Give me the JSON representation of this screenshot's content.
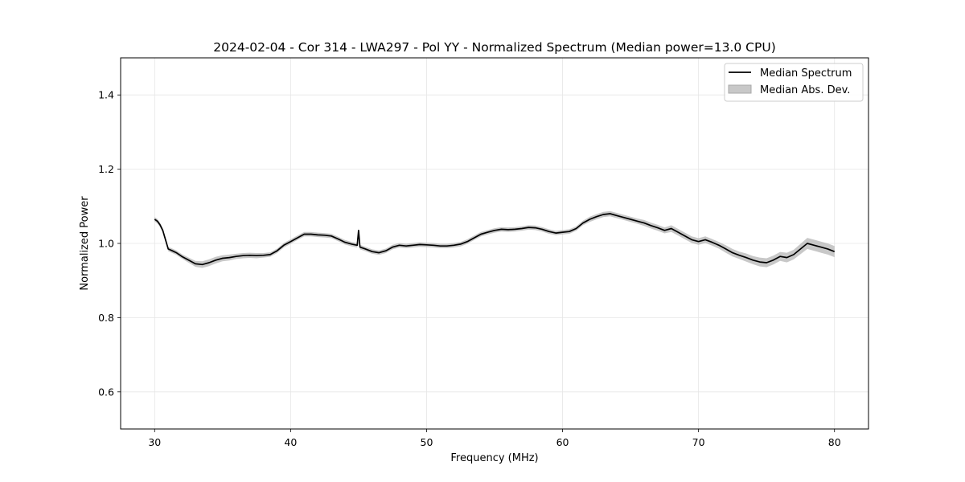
{
  "chart_data": {
    "type": "line",
    "title": "2024-02-04 - Cor 314 - LWA297 - Pol YY - Normalized Spectrum (Median power=13.0 CPU)",
    "xlabel": "Frequency (MHz)",
    "ylabel": "Normalized Power",
    "xlim": [
      27.5,
      82.5
    ],
    "ylim": [
      0.5,
      1.5
    ],
    "xticks": [
      30,
      40,
      50,
      60,
      70,
      80
    ],
    "xtick_labels": [
      "30",
      "40",
      "50",
      "60",
      "70",
      "80"
    ],
    "yticks": [
      0.6,
      0.8,
      1.0,
      1.2,
      1.4
    ],
    "ytick_labels": [
      "0.6",
      "0.8",
      "1.0",
      "1.2",
      "1.4"
    ],
    "grid": true,
    "legend_position": "top-right",
    "legend": [
      "Median Spectrum",
      "Median Abs. Dev."
    ],
    "colors": {
      "line": "#000000",
      "band": "#b0b0b0",
      "grid": "#e6e6e6"
    },
    "series": [
      {
        "name": "Median Spectrum",
        "x": [
          30.0,
          30.2,
          30.4,
          30.6,
          30.8,
          31.0,
          31.3,
          31.6,
          32.0,
          32.5,
          33.0,
          33.5,
          34.0,
          34.5,
          35.0,
          35.5,
          36.0,
          36.5,
          37.0,
          37.5,
          38.0,
          38.5,
          39.0,
          39.5,
          40.0,
          40.5,
          41.0,
          41.5,
          42.0,
          42.5,
          43.0,
          43.5,
          44.0,
          44.5,
          44.9,
          45.0,
          45.1,
          45.5,
          46.0,
          46.5,
          47.0,
          47.5,
          48.0,
          48.5,
          49.0,
          49.5,
          50.0,
          50.5,
          51.0,
          51.5,
          52.0,
          52.5,
          53.0,
          53.5,
          54.0,
          54.5,
          55.0,
          55.5,
          56.0,
          56.5,
          57.0,
          57.5,
          58.0,
          58.5,
          59.0,
          59.5,
          60.0,
          60.5,
          61.0,
          61.5,
          62.0,
          62.5,
          63.0,
          63.5,
          64.0,
          64.5,
          65.0,
          65.5,
          66.0,
          66.5,
          67.0,
          67.5,
          68.0,
          68.5,
          69.0,
          69.5,
          70.0,
          70.5,
          71.0,
          71.5,
          72.0,
          72.5,
          73.0,
          73.5,
          74.0,
          74.5,
          75.0,
          75.5,
          76.0,
          76.5,
          77.0,
          77.5,
          78.0,
          78.5,
          79.0,
          79.5,
          80.0
        ],
        "values": [
          1.065,
          1.06,
          1.05,
          1.035,
          1.01,
          0.985,
          0.98,
          0.975,
          0.965,
          0.955,
          0.945,
          0.943,
          0.948,
          0.955,
          0.96,
          0.962,
          0.965,
          0.967,
          0.968,
          0.967,
          0.968,
          0.97,
          0.98,
          0.995,
          1.005,
          1.015,
          1.025,
          1.025,
          1.023,
          1.022,
          1.02,
          1.012,
          1.003,
          0.998,
          0.995,
          1.035,
          0.99,
          0.985,
          0.978,
          0.975,
          0.98,
          0.99,
          0.995,
          0.993,
          0.995,
          0.997,
          0.996,
          0.995,
          0.993,
          0.993,
          0.995,
          0.998,
          1.005,
          1.015,
          1.025,
          1.03,
          1.035,
          1.038,
          1.037,
          1.038,
          1.04,
          1.043,
          1.042,
          1.038,
          1.032,
          1.028,
          1.03,
          1.032,
          1.04,
          1.055,
          1.065,
          1.072,
          1.078,
          1.08,
          1.075,
          1.07,
          1.065,
          1.06,
          1.055,
          1.048,
          1.042,
          1.035,
          1.04,
          1.03,
          1.02,
          1.01,
          1.005,
          1.01,
          1.003,
          0.995,
          0.985,
          0.975,
          0.968,
          0.962,
          0.955,
          0.95,
          0.948,
          0.955,
          0.965,
          0.962,
          0.97,
          0.985,
          1.0,
          0.995,
          0.99,
          0.985,
          0.978
        ],
        "mad": [
          0.006,
          0.006,
          0.006,
          0.006,
          0.006,
          0.006,
          0.006,
          0.006,
          0.006,
          0.007,
          0.008,
          0.009,
          0.009,
          0.009,
          0.008,
          0.008,
          0.007,
          0.007,
          0.007,
          0.007,
          0.006,
          0.006,
          0.006,
          0.006,
          0.006,
          0.006,
          0.006,
          0.006,
          0.006,
          0.006,
          0.006,
          0.006,
          0.006,
          0.006,
          0.006,
          0.006,
          0.006,
          0.006,
          0.006,
          0.006,
          0.006,
          0.006,
          0.006,
          0.006,
          0.006,
          0.006,
          0.006,
          0.006,
          0.006,
          0.006,
          0.006,
          0.006,
          0.006,
          0.006,
          0.006,
          0.006,
          0.006,
          0.006,
          0.006,
          0.006,
          0.006,
          0.006,
          0.006,
          0.006,
          0.006,
          0.006,
          0.006,
          0.006,
          0.006,
          0.006,
          0.007,
          0.007,
          0.007,
          0.007,
          0.007,
          0.007,
          0.007,
          0.007,
          0.008,
          0.008,
          0.008,
          0.008,
          0.009,
          0.009,
          0.009,
          0.009,
          0.009,
          0.009,
          0.009,
          0.009,
          0.01,
          0.01,
          0.01,
          0.011,
          0.011,
          0.012,
          0.012,
          0.012,
          0.012,
          0.013,
          0.013,
          0.014,
          0.015,
          0.015,
          0.015,
          0.015,
          0.015
        ]
      }
    ]
  }
}
